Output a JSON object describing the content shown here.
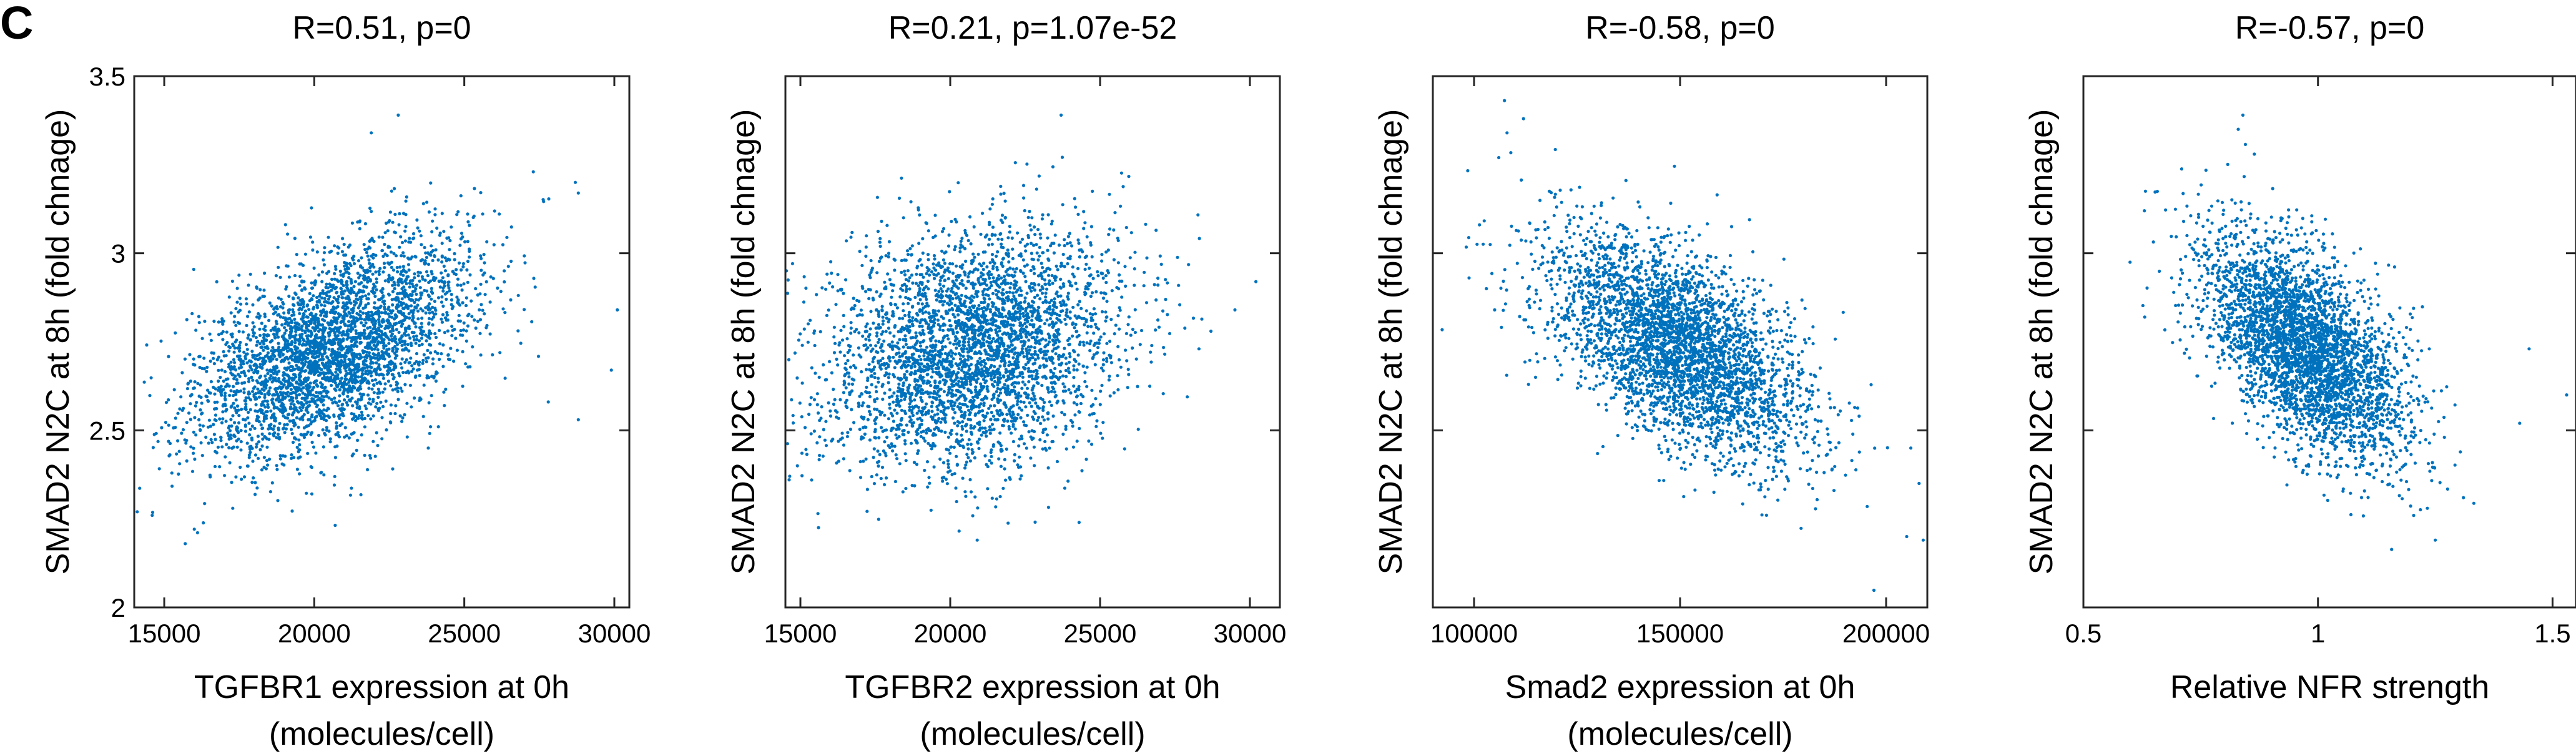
{
  "panel_label": "C",
  "marker_color": "#0072BD",
  "chart_data": [
    {
      "type": "scatter",
      "title": "R=0.51, p=0",
      "xlabel_lines": [
        "TGFBR1 expression at 0h",
        "(molecules/cell)"
      ],
      "ylabel": "SMAD2 N2C at 8h (fold chnage)",
      "xlim": [
        14000,
        30500
      ],
      "ylim": [
        2,
        3.5
      ],
      "xticks": [
        15000,
        20000,
        25000,
        30000
      ],
      "xtick_labels": [
        "15000",
        "20000",
        "25000",
        "30000"
      ],
      "yticks": [
        2,
        2.5,
        3,
        3.5
      ],
      "ytick_labels": [
        "2",
        "2.5",
        "3",
        "3.5"
      ],
      "show_ytick_labels": true,
      "point_cloud": {
        "n": 3500,
        "x_mean": 20600,
        "x_sd": 2300,
        "y_mean": 2.73,
        "y_sd": 0.15,
        "r": 0.51
      },
      "outliers": [
        {
          "x": 22800,
          "y": 3.39
        },
        {
          "x": 21900,
          "y": 3.34
        },
        {
          "x": 27300,
          "y": 3.23
        },
        {
          "x": 28700,
          "y": 3.2
        },
        {
          "x": 28800,
          "y": 3.17
        },
        {
          "x": 27800,
          "y": 2.58
        },
        {
          "x": 28800,
          "y": 2.53
        },
        {
          "x": 29900,
          "y": 2.67
        },
        {
          "x": 30100,
          "y": 2.84
        },
        {
          "x": 15700,
          "y": 2.18
        },
        {
          "x": 14600,
          "y": 2.26
        },
        {
          "x": 14100,
          "y": 2.27
        },
        {
          "x": 23800,
          "y": 2.45
        }
      ]
    },
    {
      "type": "scatter",
      "title": "R=0.21, p=1.07e-52",
      "xlabel_lines": [
        "TGFBR2 expression at 0h",
        "(molecules/cell)"
      ],
      "ylabel": "SMAD2 N2C at 8h (fold chnage)",
      "xlim": [
        14500,
        31000
      ],
      "ylim": [
        2,
        3.5
      ],
      "xticks": [
        15000,
        20000,
        25000,
        30000
      ],
      "xtick_labels": [
        "15000",
        "20000",
        "25000",
        "30000"
      ],
      "yticks": [
        2,
        2.5,
        3,
        3.5
      ],
      "ytick_labels": [
        "2",
        "2.5",
        "3",
        "3.5"
      ],
      "show_ytick_labels": false,
      "point_cloud": {
        "n": 3500,
        "x_mean": 20800,
        "x_sd": 2400,
        "y_mean": 2.73,
        "y_sd": 0.17,
        "r": 0.21
      },
      "outliers": [
        {
          "x": 23700,
          "y": 3.39
        },
        {
          "x": 30200,
          "y": 2.92
        },
        {
          "x": 29500,
          "y": 2.84
        },
        {
          "x": 28700,
          "y": 2.78
        },
        {
          "x": 28300,
          "y": 2.73
        },
        {
          "x": 20900,
          "y": 2.19
        },
        {
          "x": 24300,
          "y": 2.24
        },
        {
          "x": 14900,
          "y": 2.4
        }
      ]
    },
    {
      "type": "scatter",
      "title": "R=-0.58, p=0",
      "xlabel_lines": [
        "Smad2 expression at 0h",
        "(molecules/cell)"
      ],
      "ylabel": "SMAD2 N2C at 8h (fold chnage)",
      "xlim": [
        90000,
        210000
      ],
      "ylim": [
        2,
        3.5
      ],
      "xticks": [
        100000,
        150000,
        200000
      ],
      "xtick_labels": [
        "100000",
        "150000",
        "200000"
      ],
      "yticks": [
        2,
        2.5,
        3,
        3.5
      ],
      "ytick_labels": [
        "2",
        "2.5",
        "3",
        "3.5"
      ],
      "show_ytick_labels": false,
      "point_cloud": {
        "n": 3500,
        "x_mean": 150000,
        "x_sd": 16000,
        "y_mean": 2.73,
        "y_sd": 0.16,
        "r": -0.58
      },
      "outliers": [
        {
          "x": 112000,
          "y": 3.38
        },
        {
          "x": 108000,
          "y": 3.34
        },
        {
          "x": 106000,
          "y": 3.27
        },
        {
          "x": 205000,
          "y": 2.2
        },
        {
          "x": 209000,
          "y": 2.19
        },
        {
          "x": 208000,
          "y": 2.35
        },
        {
          "x": 206000,
          "y": 2.45
        },
        {
          "x": 105000,
          "y": 2.84
        },
        {
          "x": 103000,
          "y": 2.9
        }
      ]
    },
    {
      "type": "scatter",
      "title": "R=-0.57, p=0",
      "xlabel_lines": [
        "Relative NFR strength",
        ""
      ],
      "ylabel": "SMAD2 N2C at 8h (fold chnage)",
      "xlim": [
        0.5,
        1.55
      ],
      "ylim": [
        2,
        3.5
      ],
      "xticks": [
        0.5,
        1,
        1.5
      ],
      "xtick_labels": [
        "0.5",
        "1",
        "1.5"
      ],
      "yticks": [
        2,
        2.5,
        3,
        3.5
      ],
      "ytick_labels": [
        "2",
        "2.5",
        "3",
        "3.5"
      ],
      "show_ytick_labels": false,
      "point_cloud": {
        "n": 3500,
        "x_mean": 0.97,
        "x_sd": 0.11,
        "y_mean": 2.73,
        "y_sd": 0.16,
        "r": -0.57
      },
      "outliers": [
        {
          "x": 0.84,
          "y": 3.39
        },
        {
          "x": 0.83,
          "y": 3.35
        },
        {
          "x": 0.63,
          "y": 3.12
        },
        {
          "x": 1.45,
          "y": 2.73
        },
        {
          "x": 1.43,
          "y": 2.52
        },
        {
          "x": 1.25,
          "y": 2.19
        },
        {
          "x": 1.31,
          "y": 2.31
        },
        {
          "x": 1.53,
          "y": 2.6
        }
      ]
    }
  ]
}
